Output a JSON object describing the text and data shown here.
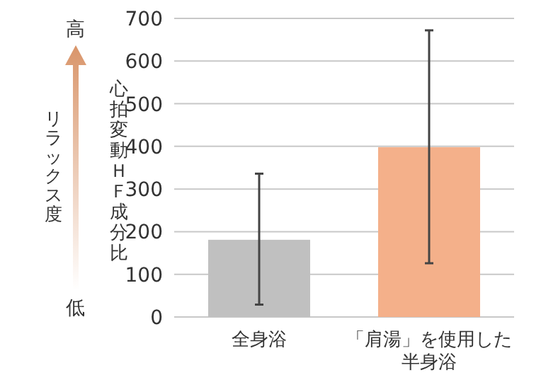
{
  "chart_data": {
    "type": "bar",
    "ylabel": "心拍変動ＨＦ成分比",
    "categories": [
      "全身浴",
      "「肩湯」を使用した半身浴"
    ],
    "values": [
      181,
      398
    ],
    "colors": [
      "#c0c0c0",
      "#f4b08a"
    ],
    "errors": [
      [
        29,
        336
      ],
      [
        126,
        672
      ]
    ],
    "ylim": [
      0,
      700
    ],
    "yticks": [
      0,
      100,
      200,
      300,
      400,
      500,
      600,
      700
    ],
    "grid": "y",
    "annotations": [
      "高",
      "リラックス度",
      "低"
    ]
  }
}
